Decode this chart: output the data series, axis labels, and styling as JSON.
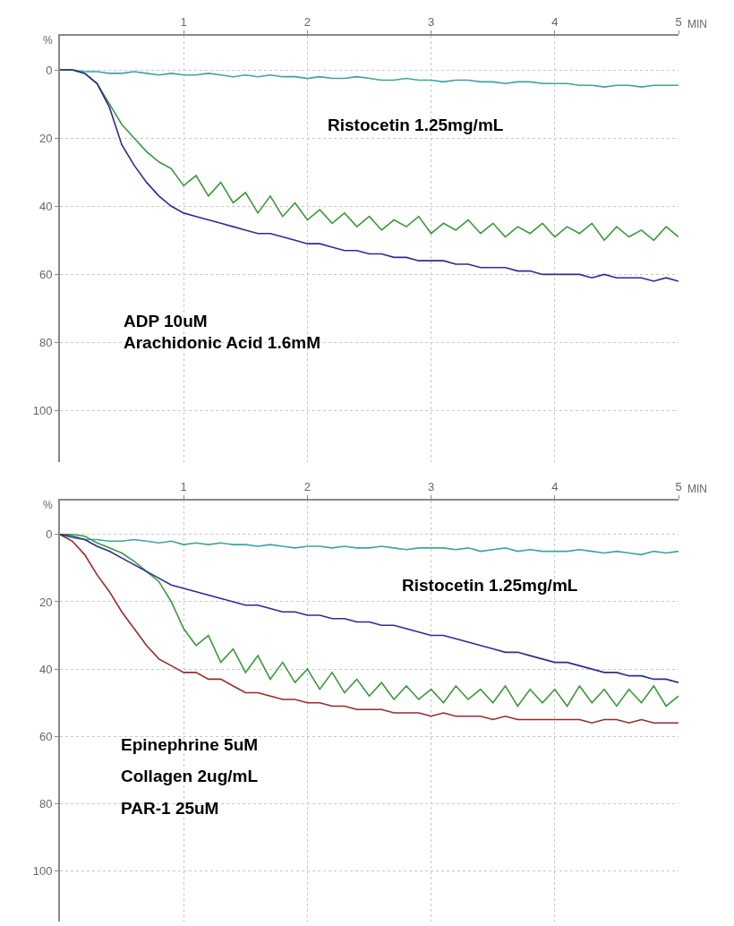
{
  "chart_data": [
    {
      "type": "line",
      "xlabel": "MIN",
      "ylabel": "%",
      "xlim": [
        0,
        5
      ],
      "xticks": [
        1,
        2,
        3,
        4,
        5
      ],
      "ylim": [
        115,
        -10
      ],
      "yticks": [
        0,
        20,
        40,
        60,
        80,
        100
      ],
      "grid": true,
      "line_style": "solid",
      "x": [
        0,
        0.1,
        0.2,
        0.3,
        0.4,
        0.5,
        0.6,
        0.7,
        0.8,
        0.9,
        1,
        1.1,
        1.2,
        1.3,
        1.4,
        1.5,
        1.6,
        1.7,
        1.8,
        1.9,
        2,
        2.1,
        2.2,
        2.3,
        2.4,
        2.5,
        2.6,
        2.7,
        2.8,
        2.9,
        3,
        3.1,
        3.2,
        3.3,
        3.4,
        3.5,
        3.6,
        3.7,
        3.8,
        3.9,
        4,
        4.1,
        4.2,
        4.3,
        4.4,
        4.5,
        4.6,
        4.7,
        4.8,
        4.9,
        5
      ],
      "series": [
        {
          "color": "#3aa6a0",
          "values": [
            0,
            0,
            0.5,
            0.5,
            1,
            1,
            0.5,
            1,
            1.5,
            1,
            1.5,
            1.5,
            1,
            1.5,
            2,
            1.5,
            2,
            1.5,
            2,
            2,
            2.5,
            2,
            2.5,
            2.5,
            2,
            2.5,
            3,
            3,
            2.5,
            3,
            3,
            3.5,
            3,
            3,
            3.5,
            3.5,
            4,
            3.5,
            3.5,
            4,
            4,
            4,
            4.5,
            4.5,
            5,
            4.5,
            4.5,
            5,
            4.5,
            4.5,
            4.5
          ]
        },
        {
          "color": "#3c9a3c",
          "values": [
            0,
            0,
            1,
            4,
            10,
            16,
            20,
            24,
            27,
            29,
            34,
            31,
            37,
            33,
            39,
            36,
            42,
            37,
            43,
            39,
            44,
            41,
            45,
            42,
            46,
            43,
            47,
            44,
            46,
            43,
            48,
            45,
            47,
            44,
            48,
            45,
            49,
            46,
            48,
            45,
            49,
            46,
            48,
            45,
            50,
            46,
            49,
            47,
            50,
            46,
            49
          ]
        },
        {
          "color": "#2c2c96",
          "values": [
            0,
            0,
            1,
            4,
            11,
            22,
            28,
            33,
            37,
            40,
            42,
            43,
            44,
            45,
            46,
            47,
            48,
            48,
            49,
            50,
            51,
            51,
            52,
            53,
            53,
            54,
            54,
            55,
            55,
            56,
            56,
            56,
            57,
            57,
            58,
            58,
            58,
            59,
            59,
            60,
            60,
            60,
            60,
            61,
            60,
            61,
            61,
            61,
            62,
            61,
            62
          ]
        }
      ],
      "annotations": [
        "Ristocetin 1.25mg/mL",
        "ADP 10uM",
        "Arachidonic Acid 1.6mM"
      ]
    },
    {
      "type": "line",
      "xlabel": "MIN",
      "ylabel": "%",
      "xlim": [
        0,
        5
      ],
      "xticks": [
        1,
        2,
        3,
        4,
        5
      ],
      "ylim": [
        115,
        -10
      ],
      "yticks": [
        0,
        20,
        40,
        60,
        80,
        100
      ],
      "grid": true,
      "line_style": "solid",
      "x": [
        0,
        0.1,
        0.2,
        0.3,
        0.4,
        0.5,
        0.6,
        0.7,
        0.8,
        0.9,
        1,
        1.1,
        1.2,
        1.3,
        1.4,
        1.5,
        1.6,
        1.7,
        1.8,
        1.9,
        2,
        2.1,
        2.2,
        2.3,
        2.4,
        2.5,
        2.6,
        2.7,
        2.8,
        2.9,
        3,
        3.1,
        3.2,
        3.3,
        3.4,
        3.5,
        3.6,
        3.7,
        3.8,
        3.9,
        4,
        4.1,
        4.2,
        4.3,
        4.4,
        4.5,
        4.6,
        4.7,
        4.8,
        4.9,
        5
      ],
      "series": [
        {
          "color": "#3aa6a0",
          "values": [
            0,
            1,
            1.5,
            1.5,
            2,
            2,
            1.5,
            2,
            2.5,
            2,
            3,
            2.5,
            3,
            2.5,
            3,
            3,
            3.5,
            3,
            3.5,
            4,
            3.5,
            3.5,
            4,
            3.5,
            4,
            4,
            3.5,
            4,
            4.5,
            4,
            4,
            4,
            4.5,
            4,
            5,
            4.5,
            4,
            5,
            4.5,
            5,
            5,
            5,
            4.5,
            5,
            5.5,
            5,
            5.5,
            6,
            5,
            5.5,
            5
          ]
        },
        {
          "color": "#3c9a3c",
          "values": [
            0,
            0,
            0.5,
            2.5,
            4,
            5.5,
            8,
            11,
            14,
            20,
            28,
            33,
            30,
            38,
            34,
            41,
            36,
            43,
            38,
            44,
            40,
            46,
            41,
            47,
            43,
            48,
            44,
            49,
            45,
            49,
            46,
            50,
            45,
            49,
            46,
            50,
            45,
            51,
            46,
            50,
            46,
            51,
            45,
            50,
            46,
            51,
            46,
            50,
            45,
            51,
            48
          ]
        },
        {
          "color": "#9a2a2a",
          "values": [
            0,
            2,
            6,
            12,
            17,
            23,
            28,
            33,
            37,
            39,
            41,
            41,
            43,
            43,
            45,
            47,
            47,
            48,
            49,
            49,
            50,
            50,
            51,
            51,
            52,
            52,
            52,
            53,
            53,
            53,
            54,
            53,
            54,
            54,
            54,
            55,
            54,
            55,
            55,
            55,
            55,
            55,
            55,
            56,
            55,
            55,
            56,
            55,
            56,
            56,
            56
          ]
        },
        {
          "color": "#2c2c96",
          "values": [
            0,
            0.5,
            1.5,
            3.5,
            5,
            7,
            9,
            11,
            13,
            15,
            16,
            17,
            18,
            19,
            20,
            21,
            21,
            22,
            23,
            23,
            24,
            24,
            25,
            25,
            26,
            26,
            27,
            27,
            28,
            29,
            30,
            30,
            31,
            32,
            33,
            34,
            35,
            35,
            36,
            37,
            38,
            38,
            39,
            40,
            41,
            41,
            42,
            42,
            43,
            43,
            44
          ]
        }
      ],
      "annotations": [
        "Ristocetin 1.25mg/mL",
        "Epinephrine 5uM",
        "Collagen 2ug/mL",
        "PAR-1 25uM"
      ]
    }
  ]
}
